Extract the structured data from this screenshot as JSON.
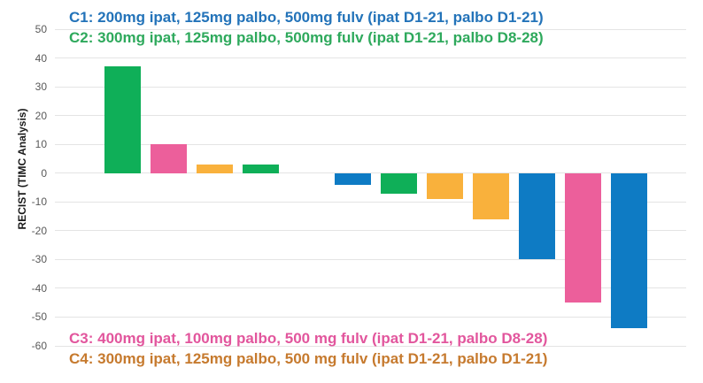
{
  "page": {
    "background": "#ffffff",
    "description": "Waterfall plot of best RECIST percent change per patient, colored by dose cohort"
  },
  "chart_data": {
    "type": "bar",
    "variant": "waterfall",
    "title": "",
    "xlabel": "",
    "ylabel": "RECIST (TIMC Analysis)",
    "ylim": [
      -60,
      50
    ],
    "yticks": [
      50,
      40,
      30,
      20,
      10,
      0,
      -10,
      -20,
      -30,
      -40,
      -50,
      -60
    ],
    "grid": "horizontal light-gray lines, no plot border, no x-axis labels",
    "gridline_color": "#e4e4e4",
    "cohort_colors": {
      "C1": "#0E7BC4",
      "C2": "#0FAF58",
      "C3": "#EC5F9B",
      "C4": "#F9B13C"
    },
    "bars": [
      {
        "cohort": "C2",
        "value": 37
      },
      {
        "cohort": "C3",
        "value": 10
      },
      {
        "cohort": "C4",
        "value": 3
      },
      {
        "cohort": "C2",
        "value": 3
      },
      {
        "cohort": null,
        "value": 0
      },
      {
        "cohort": "C1",
        "value": -4
      },
      {
        "cohort": "C2",
        "value": -7
      },
      {
        "cohort": "C4",
        "value": -9
      },
      {
        "cohort": "C4",
        "value": -16
      },
      {
        "cohort": "C1",
        "value": -30
      },
      {
        "cohort": "C3",
        "value": -45
      },
      {
        "cohort": "C1",
        "value": -54
      }
    ]
  },
  "legend": {
    "top": [
      {
        "id": "C1",
        "label": "C1: 200mg ipat, 125mg palbo, 500mg fulv (ipat D1-21, palbo D1-21)",
        "color": "#2373B9"
      },
      {
        "id": "C2",
        "label": "C2: 300mg ipat, 125mg palbo, 500mg fulv (ipat D1-21, palbo D8-28)",
        "color": "#2EA95C"
      }
    ],
    "bottom": [
      {
        "id": "C3",
        "label": "C3: 400mg ipat, 100mg palbo, 500 mg fulv (ipat D1-21, palbo D8-28)",
        "color": "#E2569D"
      },
      {
        "id": "C4",
        "label": "C4: 300mg ipat, 125mg palbo, 500 mg fulv (ipat D1-21, palbo D1-21)",
        "color": "#C67A2E"
      }
    ]
  }
}
